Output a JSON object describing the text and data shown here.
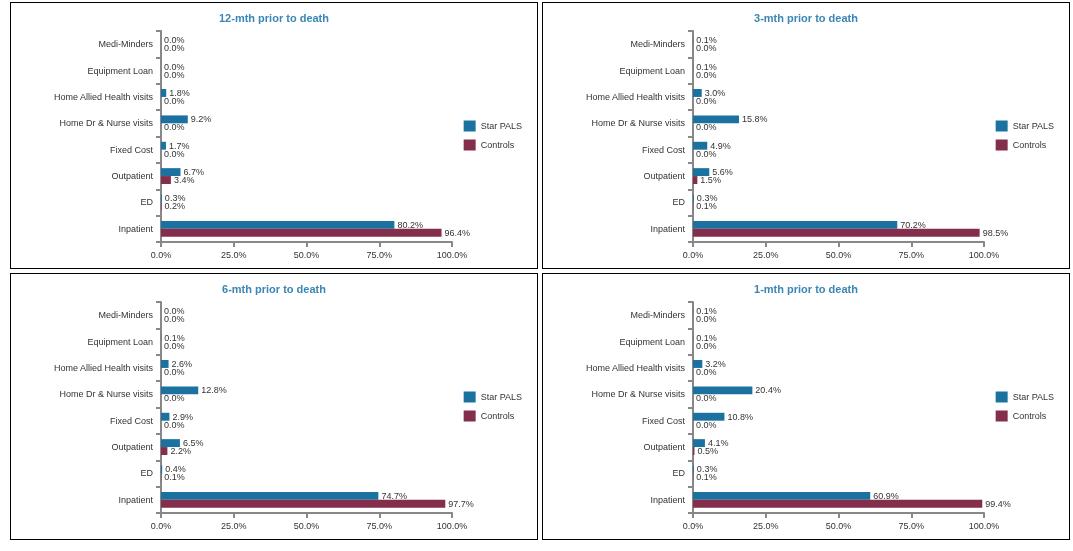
{
  "chart_data": [
    {
      "type": "bar",
      "orientation": "horizontal",
      "title": "12-mth prior to death",
      "categories": [
        "Medi-Minders",
        "Equipment Loan",
        "Home Allied Health visits",
        "Home Dr & Nurse visits",
        "Fixed Cost",
        "Outpatient",
        "ED",
        "Inpatient"
      ],
      "series": [
        {
          "name": "Star PALS",
          "color": "#1b72a0",
          "values": [
            0.0,
            0.0,
            1.8,
            9.2,
            1.7,
            6.7,
            0.3,
            80.2
          ],
          "value_labels": [
            "0.0%",
            "0.0%",
            "1.8%",
            "9.2%",
            "1.7%",
            "6.7%",
            "0.3%",
            "80.2%"
          ]
        },
        {
          "name": "Controls",
          "color": "#832f4c",
          "values": [
            0.0,
            0.0,
            0.0,
            0.0,
            0.0,
            3.4,
            0.2,
            96.4
          ],
          "value_labels": [
            "0.0%",
            "0.0%",
            "0.0%",
            "0.0%",
            "0.0%",
            "3.4%",
            "0.2%",
            "96.4%"
          ]
        }
      ],
      "xlim": [
        0,
        100
      ],
      "xticks": [
        {
          "value": 0,
          "label": "0.0%"
        },
        {
          "value": 25,
          "label": "25.0%"
        },
        {
          "value": 50,
          "label": "50.0%"
        },
        {
          "value": 75,
          "label": "75.0%"
        },
        {
          "value": 100,
          "label": "100.0%"
        }
      ],
      "grid": false,
      "legend": "right"
    },
    {
      "type": "bar",
      "orientation": "horizontal",
      "title": "3-mth prior to death",
      "categories": [
        "Medi-Minders",
        "Equipment Loan",
        "Home Allied Health visits",
        "Home Dr & Nurse visits",
        "Fixed Cost",
        "Outpatient",
        "ED",
        "Inpatient"
      ],
      "series": [
        {
          "name": "Star PALS",
          "color": "#1b72a0",
          "values": [
            0.1,
            0.1,
            3.0,
            15.8,
            4.9,
            5.6,
            0.3,
            70.2
          ],
          "value_labels": [
            "0.1%",
            "0.1%",
            "3.0%",
            "15.8%",
            "4.9%",
            "5.6%",
            "0.3%",
            "70.2%"
          ]
        },
        {
          "name": "Controls",
          "color": "#832f4c",
          "values": [
            0.0,
            0.0,
            0.0,
            0.0,
            0.0,
            1.5,
            0.1,
            98.5
          ],
          "value_labels": [
            "0.0%",
            "0.0%",
            "0.0%",
            "0.0%",
            "0.0%",
            "1.5%",
            "0.1%",
            "98.5%"
          ]
        }
      ],
      "xlim": [
        0,
        100
      ],
      "xticks": [
        {
          "value": 0,
          "label": "0.0%"
        },
        {
          "value": 25,
          "label": "25.0%"
        },
        {
          "value": 50,
          "label": "50.0%"
        },
        {
          "value": 75,
          "label": "75.0%"
        },
        {
          "value": 100,
          "label": "100.0%"
        }
      ],
      "grid": false,
      "legend": "right"
    },
    {
      "type": "bar",
      "orientation": "horizontal",
      "title": "6-mth prior to death",
      "categories": [
        "Medi-Minders",
        "Equipment Loan",
        "Home Allied Health visits",
        "Home Dr & Nurse visits",
        "Fixed Cost",
        "Outpatient",
        "ED",
        "Inpatient"
      ],
      "series": [
        {
          "name": "Star PALS",
          "color": "#1b72a0",
          "values": [
            0.0,
            0.1,
            2.6,
            12.8,
            2.9,
            6.5,
            0.4,
            74.7
          ],
          "value_labels": [
            "0.0%",
            "0.1%",
            "2.6%",
            "12.8%",
            "2.9%",
            "6.5%",
            "0.4%",
            "74.7%"
          ]
        },
        {
          "name": "Controls",
          "color": "#832f4c",
          "values": [
            0.0,
            0.0,
            0.0,
            0.0,
            0.0,
            2.2,
            0.1,
            97.7
          ],
          "value_labels": [
            "0.0%",
            "0.0%",
            "0.0%",
            "0.0%",
            "0.0%",
            "2.2%",
            "0.1%",
            "97.7%"
          ]
        }
      ],
      "xlim": [
        0,
        100
      ],
      "xticks": [
        {
          "value": 0,
          "label": "0.0%"
        },
        {
          "value": 25,
          "label": "25.0%"
        },
        {
          "value": 50,
          "label": "50.0%"
        },
        {
          "value": 75,
          "label": "75.0%"
        },
        {
          "value": 100,
          "label": "100.0%"
        }
      ],
      "grid": false,
      "legend": "right"
    },
    {
      "type": "bar",
      "orientation": "horizontal",
      "title": "1-mth prior to death",
      "categories": [
        "Medi-Minders",
        "Equipment Loan",
        "Home Allied Health visits",
        "Home Dr & Nurse visits",
        "Fixed Cost",
        "Outpatient",
        "ED",
        "Inpatient"
      ],
      "series": [
        {
          "name": "Star PALS",
          "color": "#1b72a0",
          "values": [
            0.1,
            0.1,
            3.2,
            20.4,
            10.8,
            4.1,
            0.3,
            60.9
          ],
          "value_labels": [
            "0.1%",
            "0.1%",
            "3.2%",
            "20.4%",
            "10.8%",
            "4.1%",
            "0.3%",
            "60.9%"
          ]
        },
        {
          "name": "Controls",
          "color": "#832f4c",
          "values": [
            0.0,
            0.0,
            0.0,
            0.0,
            0.0,
            0.5,
            0.1,
            99.4
          ],
          "value_labels": [
            "0.0%",
            "0.0%",
            "0.0%",
            "0.0%",
            "0.0%",
            "0.5%",
            "0.1%",
            "99.4%"
          ]
        }
      ],
      "xlim": [
        0,
        100
      ],
      "xticks": [
        {
          "value": 0,
          "label": "0.0%"
        },
        {
          "value": 25,
          "label": "25.0%"
        },
        {
          "value": 50,
          "label": "50.0%"
        },
        {
          "value": 75,
          "label": "75.0%"
        },
        {
          "value": 100,
          "label": "100.0%"
        }
      ],
      "grid": false,
      "legend": "right"
    }
  ]
}
